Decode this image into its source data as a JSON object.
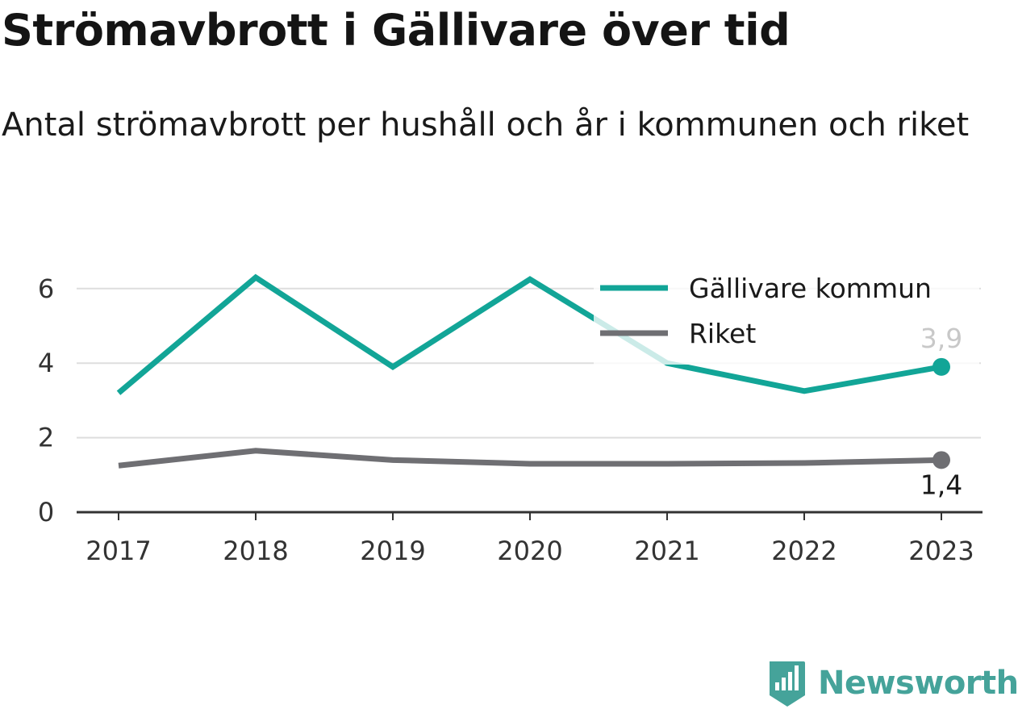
{
  "title": "Strömavbrott i Gällivare över tid",
  "subtitle": "Antal strömavbrott per hushåll och år i kommunen och riket",
  "brand": {
    "name": "Newsworthy",
    "logo_icon": "newsworthy-bar-chart-logo-icon"
  },
  "colors": {
    "gallivare": "#12a597",
    "riket": "#6f6f73",
    "grid": "#dedede",
    "axis": "#333333"
  },
  "chart_data": {
    "type": "line",
    "categories": [
      "2017",
      "2018",
      "2019",
      "2020",
      "2021",
      "2022",
      "2023"
    ],
    "series": [
      {
        "name": "Gällivare kommun",
        "values": [
          3.2,
          6.3,
          3.9,
          6.25,
          4.0,
          3.25,
          3.9
        ],
        "end_label": "3,9"
      },
      {
        "name": "Riket",
        "values": [
          1.25,
          1.65,
          1.4,
          1.3,
          1.3,
          1.32,
          1.4
        ],
        "end_label": "1,4"
      }
    ],
    "y_ticks": [
      "0",
      "2",
      "4",
      "6"
    ],
    "ylim": [
      0,
      6
    ],
    "grid": true,
    "legend_position": "top-right"
  }
}
